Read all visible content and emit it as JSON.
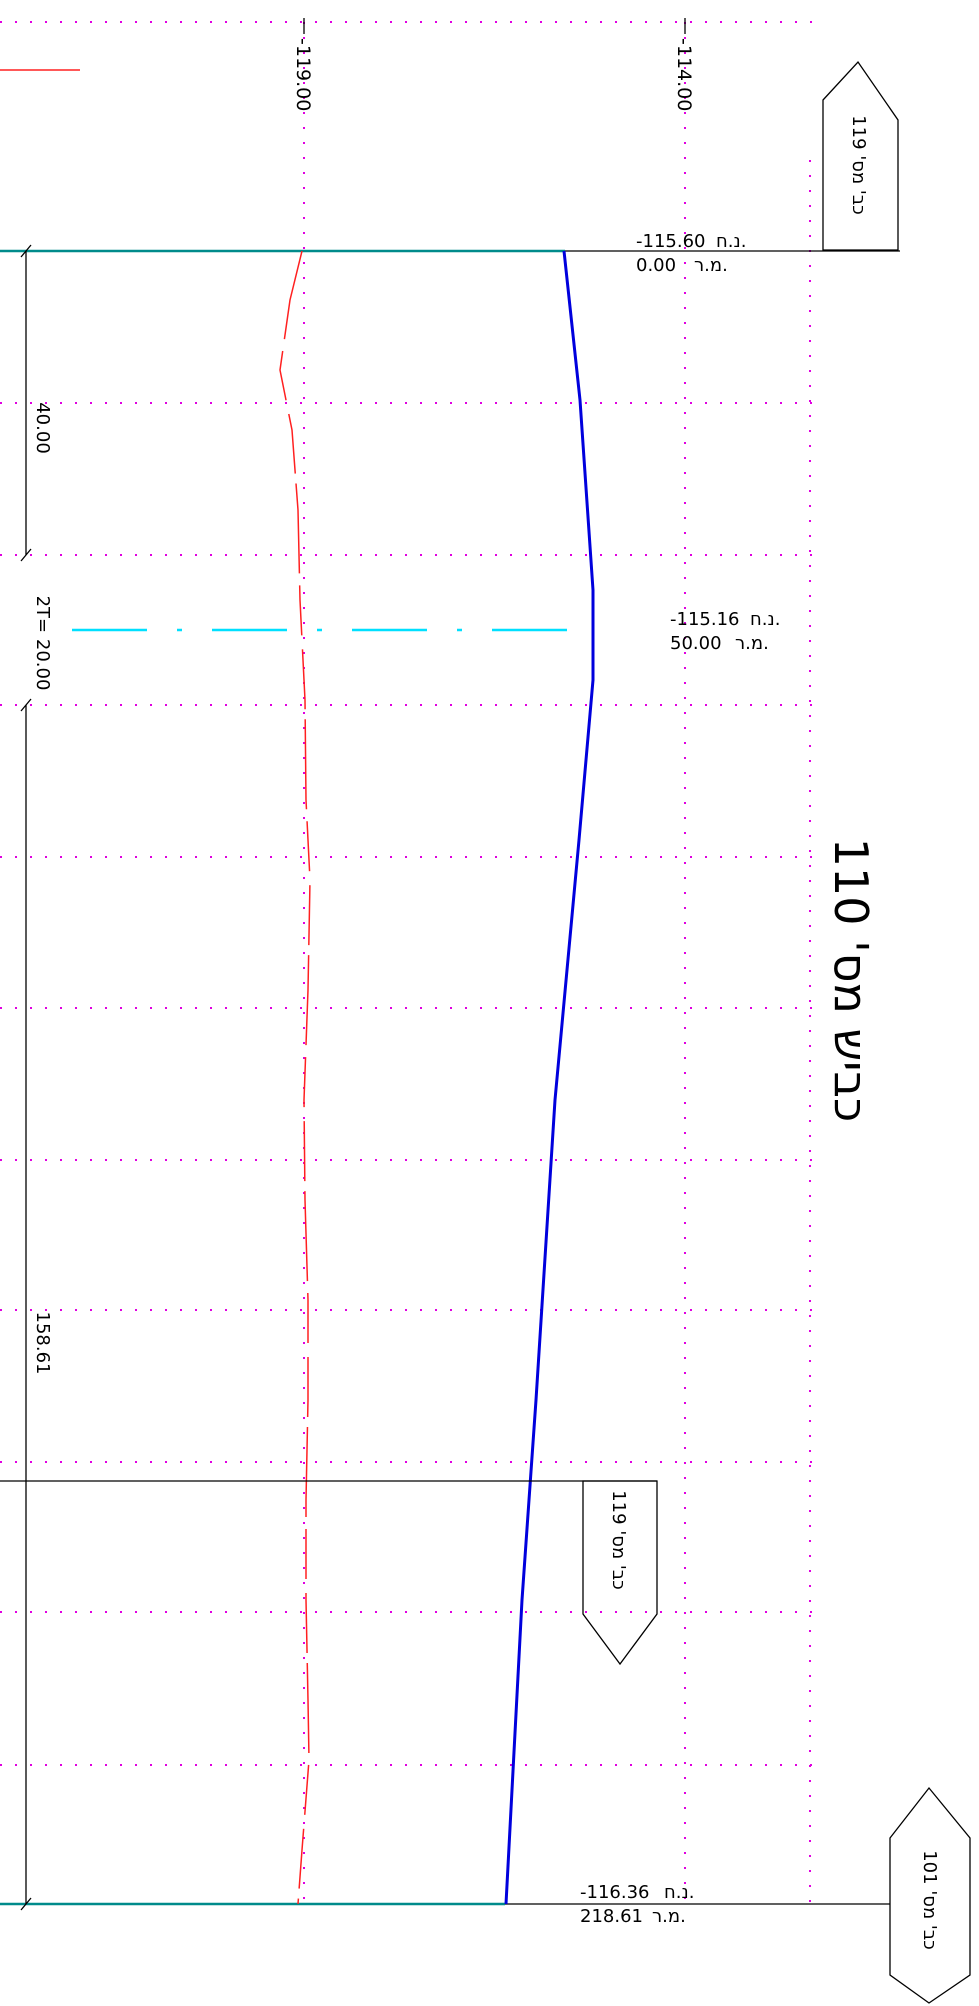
{
  "title": "כביש מס' 110",
  "axis": {
    "left_value": "-119.00",
    "right_value": "-114.00"
  },
  "stations": [
    {
      "elevation": "-115.60",
      "elev_label": "נ.ח.",
      "chainage": "0.00",
      "chain_label": "מ.ר."
    },
    {
      "elevation": "-115.16",
      "elev_label": "נ.ח.",
      "chainage": "50.00",
      "chain_label": "מ.ר."
    },
    {
      "elevation": "-116.36",
      "elev_label": "נ.ח.",
      "chainage": "218.61",
      "chain_label": "מ.ר."
    }
  ],
  "dimensions": {
    "segment_1": "40.00",
    "curve": "2T= 20.00",
    "segment_2": "158.61"
  },
  "road_tags": {
    "top": "כב' מס' 119",
    "middle": "כב' מס' 119",
    "bottom": "כב' מס' 101"
  },
  "colors": {
    "grid": "#e000e0",
    "design_profile": "#0000dd",
    "ground_profile": "#ff2020",
    "curve_center": "#00e0ff",
    "road_edge": "#008b8b"
  }
}
